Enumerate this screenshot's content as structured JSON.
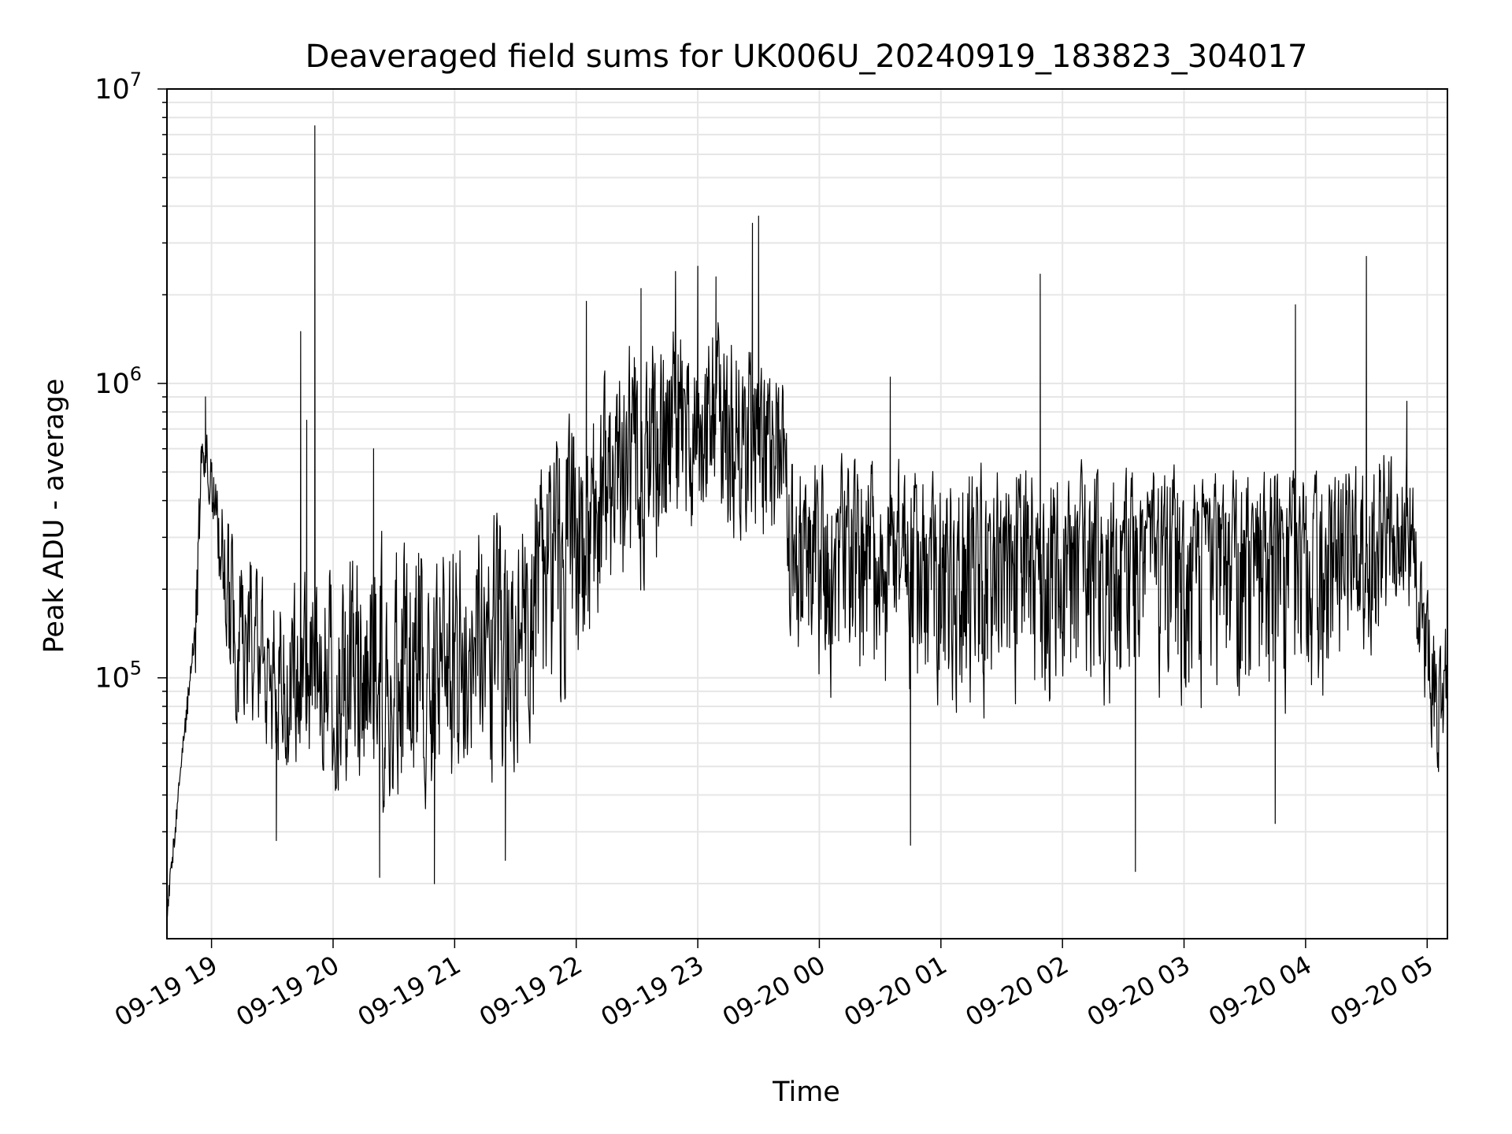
{
  "chart_data": {
    "type": "line",
    "title": "Deaveraged field sums for UK006U_20240919_183823_304017",
    "xlabel": "Time",
    "ylabel": "Peak ADU - average",
    "yscale": "log",
    "ylim": [
      13000,
      10000000
    ],
    "xlim": [
      "2024-09-19 18:38",
      "2024-09-20 05:10"
    ],
    "grid": true,
    "line_color": "#000000",
    "grid_color": "#e6e6e6",
    "x_ticks": [
      "09-19 19",
      "09-19 20",
      "09-19 21",
      "09-19 22",
      "09-19 23",
      "09-20 00",
      "09-20 01",
      "09-20 02",
      "09-20 03",
      "09-20 04",
      "09-20 05"
    ],
    "y_ticks": [
      {
        "base": "10",
        "exp": "5",
        "value": 100000
      },
      {
        "base": "10",
        "exp": "6",
        "value": 1000000
      },
      {
        "base": "10",
        "exp": "7",
        "value": 10000000
      }
    ],
    "series": [
      {
        "style": "dense-noisy-line",
        "envelope": [
          {
            "t": "2024-09-19 18:38",
            "lo": 14000,
            "mid": 16000,
            "hi": 18000
          },
          {
            "t": "2024-09-19 18:45",
            "lo": 30000,
            "mid": 50000,
            "hi": 70000
          },
          {
            "t": "2024-09-19 18:52",
            "lo": 60000,
            "mid": 150000,
            "hi": 300000
          },
          {
            "t": "2024-09-19 18:55",
            "lo": 400000,
            "mid": 550000,
            "hi": 900000
          },
          {
            "t": "2024-09-19 19:00",
            "lo": 300000,
            "mid": 500000,
            "hi": 650000
          },
          {
            "t": "2024-09-19 19:10",
            "lo": 60000,
            "mid": 150000,
            "hi": 400000
          },
          {
            "t": "2024-09-19 19:30",
            "lo": 45000,
            "mid": 100000,
            "hi": 250000
          },
          {
            "t": "2024-09-19 20:00",
            "lo": 35000,
            "mid": 85000,
            "hi": 300000
          },
          {
            "t": "2024-09-19 20:30",
            "lo": 28000,
            "mid": 90000,
            "hi": 400000
          },
          {
            "t": "2024-09-19 21:00",
            "lo": 30000,
            "mid": 110000,
            "hi": 380000
          },
          {
            "t": "2024-09-19 21:30",
            "lo": 40000,
            "mid": 160000,
            "hi": 500000
          },
          {
            "t": "2024-09-19 22:00",
            "lo": 70000,
            "mid": 300000,
            "hi": 1000000
          },
          {
            "t": "2024-09-19 22:30",
            "lo": 150000,
            "mid": 700000,
            "hi": 1800000
          },
          {
            "t": "2024-09-19 23:00",
            "lo": 250000,
            "mid": 800000,
            "hi": 2000000
          },
          {
            "t": "2024-09-19 23:40",
            "lo": 200000,
            "mid": 700000,
            "hi": 1600000
          },
          {
            "t": "2024-09-19 23:45",
            "lo": 80000,
            "mid": 300000,
            "hi": 700000
          },
          {
            "t": "2024-09-20 00:30",
            "lo": 60000,
            "mid": 280000,
            "hi": 600000
          },
          {
            "t": "2024-09-20 01:00",
            "lo": 60000,
            "mid": 300000,
            "hi": 620000
          },
          {
            "t": "2024-09-20 02:00",
            "lo": 60000,
            "mid": 320000,
            "hi": 620000
          },
          {
            "t": "2024-09-20 03:00",
            "lo": 55000,
            "mid": 300000,
            "hi": 600000
          },
          {
            "t": "2024-09-20 04:00",
            "lo": 55000,
            "mid": 300000,
            "hi": 580000
          },
          {
            "t": "2024-09-20 04:50",
            "lo": 150000,
            "mid": 350000,
            "hi": 750000
          },
          {
            "t": "2024-09-20 04:55",
            "lo": 100000,
            "mid": 200000,
            "hi": 400000
          },
          {
            "t": "2024-09-20 05:05",
            "lo": 40000,
            "mid": 80000,
            "hi": 150000
          },
          {
            "t": "2024-09-20 05:10",
            "lo": 60000,
            "mid": 110000,
            "hi": 180000
          }
        ],
        "spikes": [
          {
            "t": "2024-09-19 18:57",
            "value": 900000
          },
          {
            "t": "2024-09-19 19:44",
            "value": 1500000
          },
          {
            "t": "2024-09-19 19:47",
            "value": 750000
          },
          {
            "t": "2024-09-19 19:51",
            "value": 7500000
          },
          {
            "t": "2024-09-19 20:20",
            "value": 600000
          },
          {
            "t": "2024-09-19 22:05",
            "value": 1900000
          },
          {
            "t": "2024-09-19 22:32",
            "value": 2100000
          },
          {
            "t": "2024-09-19 22:49",
            "value": 2400000
          },
          {
            "t": "2024-09-19 23:00",
            "value": 2500000
          },
          {
            "t": "2024-09-19 23:09",
            "value": 2300000
          },
          {
            "t": "2024-09-19 23:27",
            "value": 3500000
          },
          {
            "t": "2024-09-19 23:30",
            "value": 3700000
          },
          {
            "t": "2024-09-20 00:35",
            "value": 1050000
          },
          {
            "t": "2024-09-20 01:49",
            "value": 2350000
          },
          {
            "t": "2024-09-20 03:55",
            "value": 1850000
          },
          {
            "t": "2024-09-20 04:30",
            "value": 2700000
          },
          {
            "t": "2024-09-20 04:50",
            "value": 870000
          }
        ],
        "dips": [
          {
            "t": "2024-09-19 19:32",
            "value": 28000
          },
          {
            "t": "2024-09-19 20:23",
            "value": 21000
          },
          {
            "t": "2024-09-19 20:50",
            "value": 20000
          },
          {
            "t": "2024-09-19 21:25",
            "value": 24000
          },
          {
            "t": "2024-09-20 00:45",
            "value": 27000
          },
          {
            "t": "2024-09-20 02:36",
            "value": 22000
          },
          {
            "t": "2024-09-20 03:45",
            "value": 32000
          }
        ]
      }
    ]
  }
}
